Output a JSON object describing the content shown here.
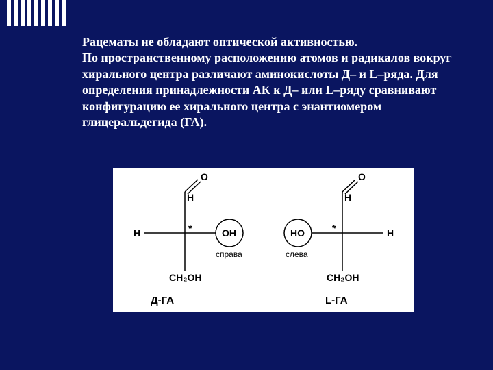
{
  "slide": {
    "background": "#0a1560",
    "text_color": "#ffffff",
    "paragraph": "Рацематы не обладают оптической активностью.\nПо пространственному расположению атомов и радикалов вокруг хирального центра различают аминокислоты Д– и L–ряда. Для определения принадлежности АК к Д– или L–ряду сравнивают конфигурацию ее хирального центра с энантиомером глицеральдегида (ГА)."
  },
  "diagram": {
    "type": "infographic",
    "background": "#ffffff",
    "stroke": "#000000",
    "label_fontfamily": "Arial",
    "label_fontsize_title": 15,
    "label_fontsize_atom": 14,
    "label_fontsize_note": 12,
    "left": {
      "title": "Д-ГА",
      "top_group": "H",
      "top_oxygen": "O",
      "left_atom": "H",
      "circle_text": "OH",
      "circle_note": "справа",
      "bottom_group": "CH₂OH",
      "chiral_mark": "*"
    },
    "right": {
      "title": "L-ГА",
      "top_group": "H",
      "top_oxygen": "O",
      "right_atom": "H",
      "circle_text": "HO",
      "circle_note": "слева",
      "bottom_group": "CH₂OH",
      "chiral_mark": "*"
    }
  }
}
